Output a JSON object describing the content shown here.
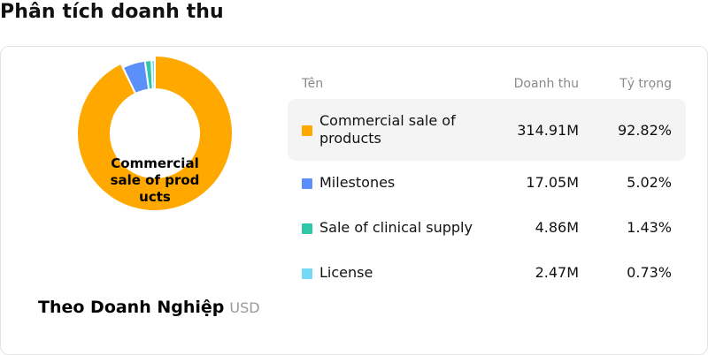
{
  "page": {
    "title": "Phân tích doanh thu"
  },
  "chart": {
    "center_label": "Commercial sale of products",
    "footer_title": "Theo Doanh Nghiệp",
    "footer_unit": "USD"
  },
  "table": {
    "headers": {
      "name": "Tên",
      "revenue": "Doanh thu",
      "share": "Tỷ trọng"
    },
    "rows": [
      {
        "name": "Commercial sale of products",
        "revenue": "314.91M",
        "share": "92.82%",
        "color": "#FFA800"
      },
      {
        "name": "Milestones",
        "revenue": "17.05M",
        "share": "5.02%",
        "color": "#5B8FF9"
      },
      {
        "name": "Sale of clinical supply",
        "revenue": "4.86M",
        "share": "1.43%",
        "color": "#2EC7A7"
      },
      {
        "name": "License",
        "revenue": "2.47M",
        "share": "0.73%",
        "color": "#74D9F5"
      }
    ]
  },
  "chart_data": {
    "type": "pie",
    "categories": [
      "Commercial sale of products",
      "Milestones",
      "Sale of clinical supply",
      "License"
    ],
    "values": [
      314.91,
      17.05,
      4.86,
      2.47
    ],
    "percentages": [
      92.82,
      5.02,
      1.43,
      0.73
    ],
    "unit": "USD",
    "colors": [
      "#FFA800",
      "#5B8FF9",
      "#2EC7A7",
      "#74D9F5"
    ],
    "highlighted": "Commercial sale of products"
  }
}
